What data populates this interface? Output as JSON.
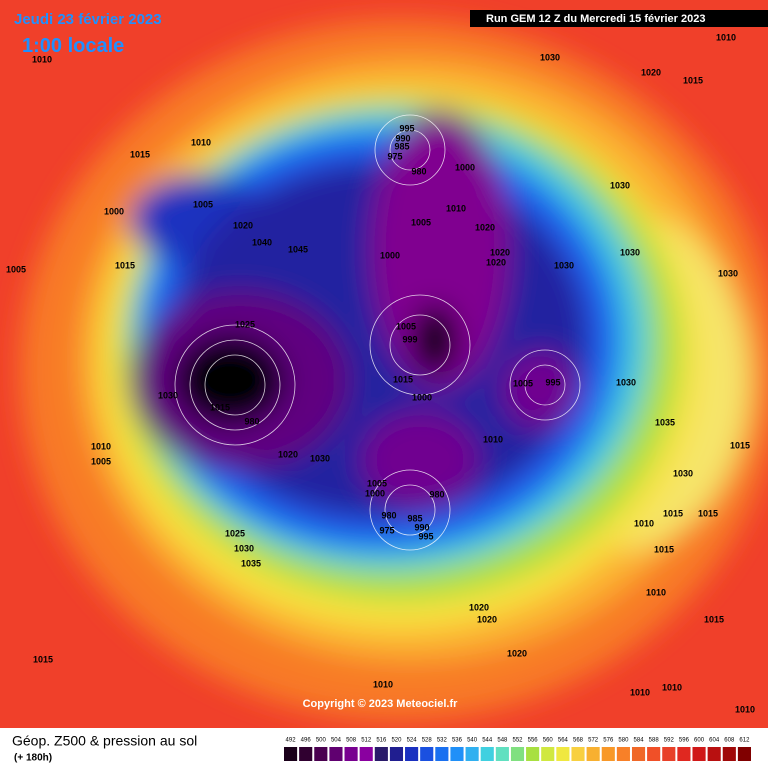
{
  "header": {
    "date": "Jeudi 23 février 2023",
    "time": "1:00 locale",
    "run": "Run GEM 12 Z du Mercredi 15 février 2023"
  },
  "footer": {
    "title": "Géop. Z500 & pression au sol",
    "lead": "(+ 180h)",
    "copyright": "Copyright © 2023 Meteociel.fr"
  },
  "legend": {
    "labels": [
      "492",
      "496",
      "500",
      "504",
      "508",
      "512",
      "516",
      "520",
      "524",
      "528",
      "532",
      "536",
      "540",
      "544",
      "548",
      "552",
      "556",
      "560",
      "564",
      "568",
      "572",
      "576",
      "580",
      "584",
      "588",
      "592",
      "596",
      "600",
      "604",
      "608",
      "612"
    ]
  },
  "isobar_labels": [
    "1010",
    "1010",
    "1030",
    "1020",
    "1015",
    "1015",
    "1010",
    "995",
    "990",
    "985",
    "975",
    "980",
    "1000",
    "1030",
    "1005",
    "1000",
    "1020",
    "1040",
    "1045",
    "1005",
    "1015",
    "1005",
    "1010",
    "1020",
    "1020",
    "1020",
    "1000",
    "1030",
    "1030",
    "1030",
    "1025",
    "1005",
    "999",
    "1015",
    "1000",
    "1005",
    "995",
    "1030",
    "1030",
    "1015",
    "980",
    "1035",
    "1010",
    "1005",
    "1020",
    "1030",
    "1010",
    "1015",
    "1005",
    "1000",
    "980",
    "980",
    "975",
    "985",
    "990",
    "995",
    "1030",
    "1015",
    "1015",
    "1010",
    "1025",
    "1030",
    "1035",
    "1015",
    "1010",
    "1020",
    "1020",
    "1020",
    "1015",
    "1015",
    "1010",
    "1010",
    "1010",
    "1010"
  ]
}
